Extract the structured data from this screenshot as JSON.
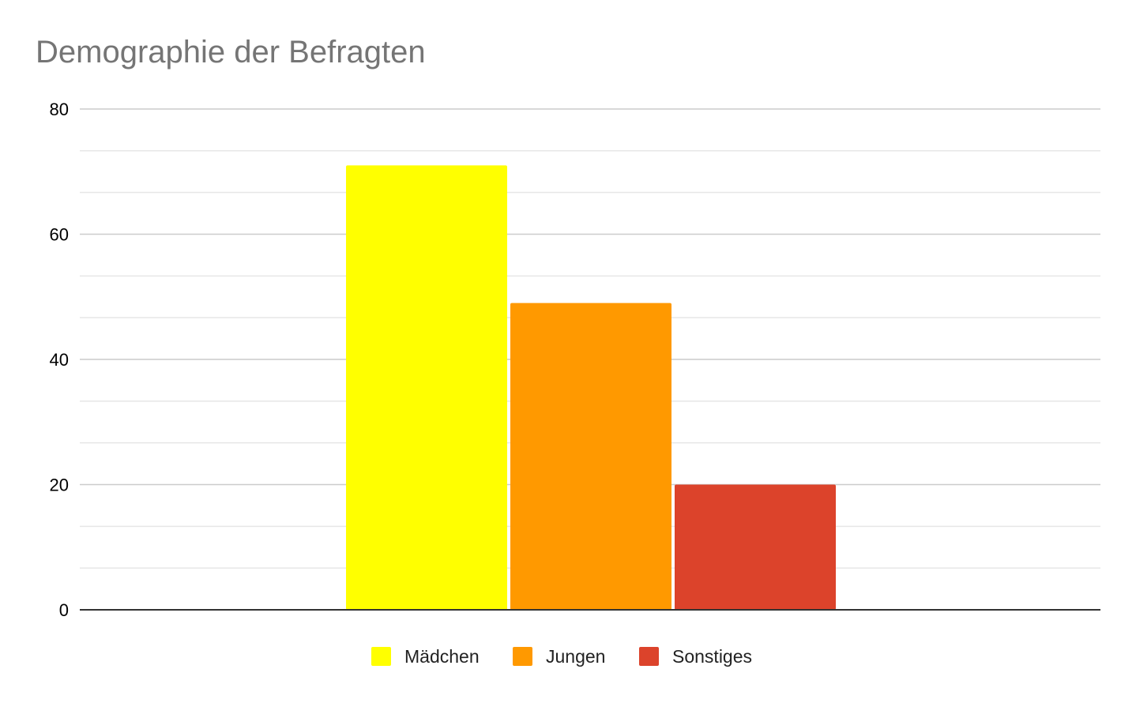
{
  "chart_data": {
    "type": "bar",
    "title": "Demographie der Befragten",
    "xlabel": "",
    "ylabel": "",
    "ylim": [
      0,
      80
    ],
    "yticks": [
      0,
      20,
      40,
      60,
      80
    ],
    "minor_gridlines": true,
    "grid": true,
    "legend_position": "bottom",
    "categories": [
      ""
    ],
    "series": [
      {
        "name": "Mädchen",
        "values": [
          71
        ],
        "color": "#ffff00"
      },
      {
        "name": "Jungen",
        "values": [
          49
        ],
        "color": "#ff9900"
      },
      {
        "name": "Sonstiges",
        "values": [
          20
        ],
        "color": "#dc432b"
      }
    ]
  }
}
